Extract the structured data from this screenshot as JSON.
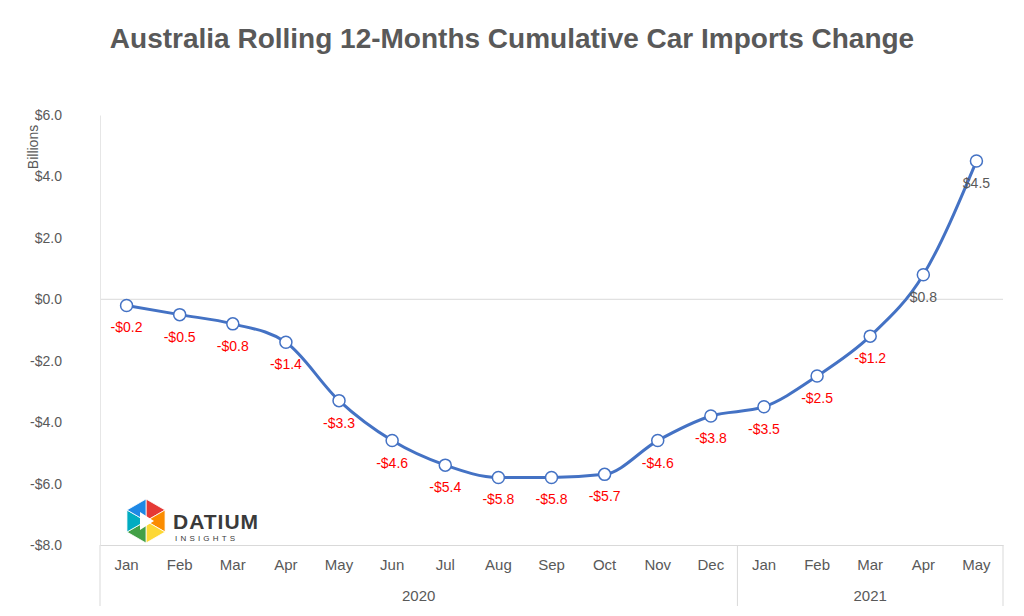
{
  "chart_data": {
    "type": "line",
    "title": "Australia Rolling 12-Months Cumulative Car Imports Change",
    "y_label": "Billions",
    "categories": [
      "Jan",
      "Feb",
      "Mar",
      "Apr",
      "May",
      "Jun",
      "Jul",
      "Aug",
      "Sep",
      "Oct",
      "Nov",
      "Dec",
      "Jan",
      "Feb",
      "Mar",
      "Apr",
      "May"
    ],
    "years": [
      "2020",
      "2020",
      "2020",
      "2020",
      "2020",
      "2020",
      "2020",
      "2020",
      "2020",
      "2020",
      "2020",
      "2020",
      "2021",
      "2021",
      "2021",
      "2021",
      "2021"
    ],
    "values": [
      -0.2,
      -0.5,
      -0.8,
      -1.4,
      -3.3,
      -4.6,
      -5.4,
      -5.8,
      -5.8,
      -5.7,
      -4.6,
      -3.8,
      -3.5,
      -2.5,
      -1.2,
      0.8,
      4.5
    ],
    "value_labels": [
      "-$0.2",
      "-$0.5",
      "-$0.8",
      "-$1.4",
      "-$3.3",
      "-$4.6",
      "-$5.4",
      "-$5.8",
      "-$5.8",
      "-$5.7",
      "-$4.6",
      "-$3.8",
      "-$3.5",
      "-$2.5",
      "-$1.2",
      "$0.8",
      "$4.5"
    ],
    "color": "#4472c4",
    "marker": "circle",
    "data_labels": true,
    "grid": false,
    "ylim": [
      -8,
      6
    ],
    "yticks": [
      {
        "value": -8,
        "label": "-$8.0"
      },
      {
        "value": -6,
        "label": "-$6.0"
      },
      {
        "value": -4,
        "label": "-$4.0"
      },
      {
        "value": -2,
        "label": "-$2.0"
      },
      {
        "value": 0,
        "label": "$0.0"
      },
      {
        "value": 2,
        "label": "$2.0"
      },
      {
        "value": 4,
        "label": "$4.0"
      },
      {
        "value": 6,
        "label": "$6.0"
      }
    ],
    "logo_text": [
      "DATIUM",
      "INSIGHTS"
    ]
  }
}
